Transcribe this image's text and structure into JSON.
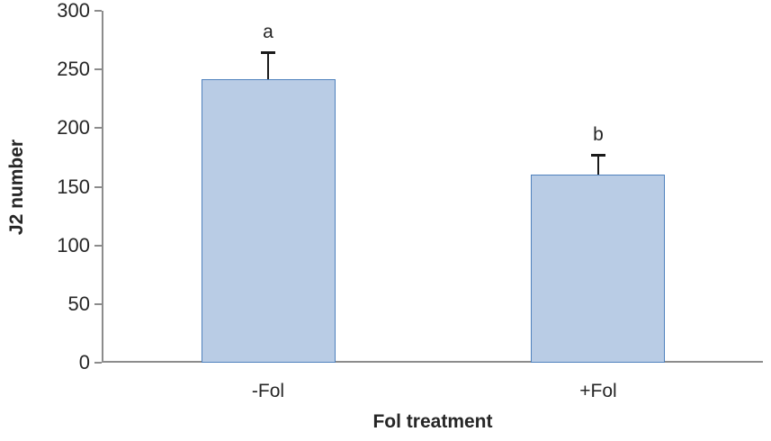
{
  "chart_data": {
    "type": "bar",
    "title": "",
    "xlabel": "Fol treatment",
    "ylabel": "J2 number",
    "categories": [
      "-Fol",
      "+Fol"
    ],
    "values": [
      242,
      160
    ],
    "errors": [
      23,
      17
    ],
    "sig_letters": [
      "a",
      "b"
    ],
    "ylim": [
      0,
      300
    ],
    "yticks": [
      0,
      50,
      100,
      150,
      200,
      250,
      300
    ],
    "grid": false,
    "legend": "none",
    "bar_fill_color": "#b9cce5",
    "bar_border_color": "#4f81bd",
    "error_bar_color": "#1a1a1a",
    "axis_color": "#8c8c8c",
    "text_color": "#262626"
  }
}
